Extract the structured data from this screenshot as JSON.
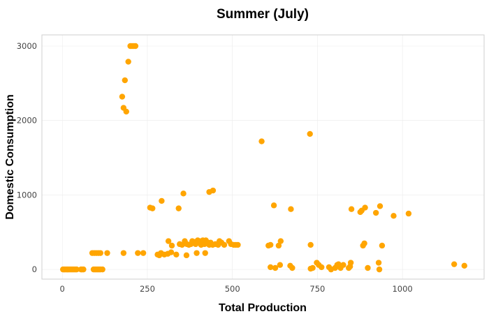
{
  "chart_data": {
    "type": "scatter",
    "title": "Summer (July)",
    "xlabel": "Total Production",
    "ylabel": "Domestic Consumption",
    "xlim": [
      -60,
      1240
    ],
    "ylim": [
      -130,
      3150
    ],
    "xticks": [
      0,
      250,
      500,
      750,
      1000
    ],
    "yticks": [
      0,
      1000,
      2000,
      3000
    ],
    "grid": true,
    "point_color": "#FFA500",
    "points": [
      [
        2,
        0
      ],
      [
        5,
        0
      ],
      [
        8,
        0
      ],
      [
        12,
        0
      ],
      [
        15,
        0
      ],
      [
        18,
        0
      ],
      [
        22,
        0
      ],
      [
        26,
        0
      ],
      [
        30,
        0
      ],
      [
        34,
        0
      ],
      [
        38,
        0
      ],
      [
        42,
        0
      ],
      [
        55,
        0
      ],
      [
        58,
        0
      ],
      [
        62,
        0
      ],
      [
        92,
        0
      ],
      [
        96,
        0
      ],
      [
        100,
        0
      ],
      [
        104,
        0
      ],
      [
        108,
        0
      ],
      [
        112,
        0
      ],
      [
        118,
        0
      ],
      [
        88,
        220
      ],
      [
        94,
        220
      ],
      [
        100,
        220
      ],
      [
        106,
        220
      ],
      [
        112,
        220
      ],
      [
        132,
        220
      ],
      [
        180,
        220
      ],
      [
        222,
        220
      ],
      [
        238,
        220
      ],
      [
        176,
        2320
      ],
      [
        180,
        2170
      ],
      [
        184,
        2540
      ],
      [
        188,
        2120
      ],
      [
        194,
        2790
      ],
      [
        200,
        3000
      ],
      [
        205,
        3000
      ],
      [
        210,
        3000
      ],
      [
        215,
        3000
      ],
      [
        258,
        830
      ],
      [
        265,
        820
      ],
      [
        292,
        920
      ],
      [
        342,
        820
      ],
      [
        356,
        1020
      ],
      [
        432,
        1040
      ],
      [
        443,
        1060
      ],
      [
        280,
        200
      ],
      [
        285,
        190
      ],
      [
        290,
        220
      ],
      [
        300,
        200
      ],
      [
        310,
        210
      ],
      [
        320,
        230
      ],
      [
        335,
        200
      ],
      [
        365,
        190
      ],
      [
        395,
        220
      ],
      [
        420,
        220
      ],
      [
        312,
        380
      ],
      [
        322,
        320
      ],
      [
        345,
        340
      ],
      [
        352,
        330
      ],
      [
        360,
        380
      ],
      [
        366,
        340
      ],
      [
        372,
        330
      ],
      [
        378,
        340
      ],
      [
        382,
        380
      ],
      [
        388,
        370
      ],
      [
        392,
        340
      ],
      [
        398,
        390
      ],
      [
        403,
        380
      ],
      [
        408,
        330
      ],
      [
        413,
        390
      ],
      [
        418,
        340
      ],
      [
        422,
        390
      ],
      [
        428,
        360
      ],
      [
        432,
        330
      ],
      [
        436,
        360
      ],
      [
        442,
        330
      ],
      [
        450,
        340
      ],
      [
        458,
        330
      ],
      [
        462,
        380
      ],
      [
        468,
        360
      ],
      [
        476,
        330
      ],
      [
        490,
        380
      ],
      [
        496,
        340
      ],
      [
        504,
        330
      ],
      [
        510,
        330
      ],
      [
        516,
        330
      ],
      [
        586,
        1720
      ],
      [
        606,
        320
      ],
      [
        612,
        330
      ],
      [
        622,
        860
      ],
      [
        636,
        320
      ],
      [
        642,
        380
      ],
      [
        672,
        810
      ],
      [
        728,
        1820
      ],
      [
        730,
        330
      ],
      [
        612,
        30
      ],
      [
        626,
        20
      ],
      [
        640,
        60
      ],
      [
        670,
        50
      ],
      [
        676,
        20
      ],
      [
        730,
        10
      ],
      [
        736,
        20
      ],
      [
        748,
        90
      ],
      [
        754,
        60
      ],
      [
        762,
        30
      ],
      [
        784,
        30
      ],
      [
        790,
        0
      ],
      [
        802,
        20
      ],
      [
        808,
        60
      ],
      [
        812,
        70
      ],
      [
        818,
        20
      ],
      [
        826,
        60
      ],
      [
        842,
        20
      ],
      [
        846,
        40
      ],
      [
        848,
        90
      ],
      [
        850,
        810
      ],
      [
        876,
        770
      ],
      [
        880,
        790
      ],
      [
        884,
        320
      ],
      [
        888,
        350
      ],
      [
        890,
        830
      ],
      [
        898,
        20
      ],
      [
        922,
        760
      ],
      [
        930,
        90
      ],
      [
        932,
        0
      ],
      [
        934,
        850
      ],
      [
        940,
        320
      ],
      [
        974,
        720
      ],
      [
        1018,
        750
      ],
      [
        1152,
        70
      ],
      [
        1182,
        50
      ]
    ]
  }
}
